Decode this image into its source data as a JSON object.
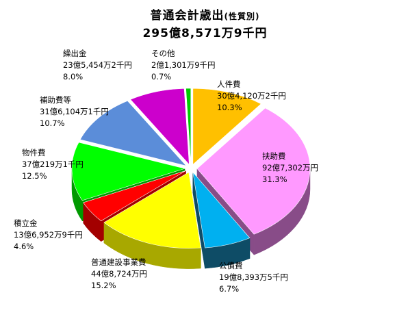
{
  "title": {
    "main": "普通会計歳出",
    "sub": "(性質別)",
    "total": "295億8,571万9千円"
  },
  "colors": {
    "top": [
      "#FFC000",
      "#FF99FF",
      "#00B0F0",
      "#FFFF00",
      "#FF0000",
      "#00FF00",
      "#5B8DD9",
      "#CC00CC",
      "#00CC00"
    ],
    "side": [
      "#B88A00",
      "#884C88",
      "#0E4C66",
      "#A8A800",
      "#A30000",
      "#009900",
      "#2F5597",
      "#7A007A",
      "#007A00"
    ]
  },
  "chart_data": {
    "type": "pie",
    "title": "普通会計歳出(性質別)",
    "subtitle": "295億8,571万9千円",
    "slices": [
      {
        "name": "人件費",
        "amount": "30億4,120万2千円",
        "percent_label": "10.3%",
        "value": 10.3
      },
      {
        "name": "扶助費",
        "amount": "92億7,302万円",
        "percent_label": "31.3%",
        "value": 31.3
      },
      {
        "name": "公債費",
        "amount": "19億8,393万5千円",
        "percent_label": "6.7%",
        "value": 6.7
      },
      {
        "name": "普通建設事業費",
        "amount": "44億8,724万円",
        "percent_label": "15.2%",
        "value": 15.2
      },
      {
        "name": "積立金",
        "amount": "13億6,952万9千円",
        "percent_label": "4.6%",
        "value": 4.6
      },
      {
        "name": "物件費",
        "amount": "37億219万1千円",
        "percent_label": "12.5%",
        "value": 12.5
      },
      {
        "name": "補助費等",
        "amount": "31億6,104万1千円",
        "percent_label": "10.7%",
        "value": 10.7
      },
      {
        "name": "繰出金",
        "amount": "23億5,454万2千円",
        "percent_label": "8.0%",
        "value": 8.0
      },
      {
        "name": "その他",
        "amount": "2億1,301万9千円",
        "percent_label": "0.7%",
        "value": 0.7
      }
    ]
  }
}
